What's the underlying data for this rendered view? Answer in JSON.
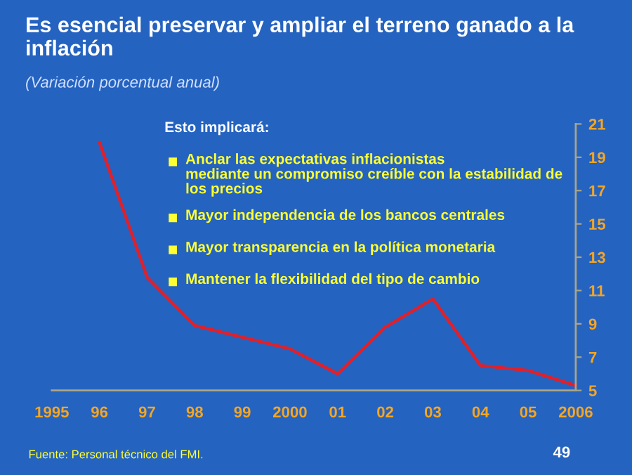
{
  "chart_data": {
    "type": "line",
    "title": "Es esencial preservar y ampliar el terreno ganado a la inflación",
    "subtitle": "(Variación porcentual anual)",
    "x": [
      1996,
      1997,
      1998,
      1999,
      2000,
      2001,
      2002,
      2003,
      2004,
      2005,
      2006
    ],
    "series": [
      {
        "color": "#e0202a",
        "values": [
          19.9,
          11.8,
          8.9,
          8.2,
          7.5,
          6.0,
          8.8,
          10.5,
          6.5,
          6.2,
          5.3
        ]
      }
    ],
    "xlim": [
      1995,
      2006
    ],
    "xticks": [
      1995,
      {
        "value": 1996,
        "label": "96"
      },
      {
        "value": 1997,
        "label": "97"
      },
      {
        "value": 1998,
        "label": "98"
      },
      {
        "value": 1999,
        "label": "99"
      },
      2000,
      {
        "value": 2001,
        "label": "01"
      },
      {
        "value": 2002,
        "label": "02"
      },
      {
        "value": 2003,
        "label": "03"
      },
      {
        "value": 2004,
        "label": "04"
      },
      {
        "value": 2005,
        "label": "05"
      },
      2006
    ],
    "ylim": [
      5,
      21
    ],
    "yticks": [
      5,
      7,
      9,
      11,
      13,
      15,
      17,
      19,
      21
    ],
    "grid": false,
    "legend": false,
    "marker": "none",
    "line_style": "solid",
    "annotations": [
      "Esto implicará:",
      "Anclar las expectativas inflacionistas mediante un compromiso creíble con la estabilidad de los precios",
      "Mayor independencia de los bancos centrales",
      "Mayor transparencia en la política monetaria",
      "Mantener la flexibilidad del tipo de cambio",
      "Fuente: Personal técnico del FMI.",
      "49"
    ]
  }
}
